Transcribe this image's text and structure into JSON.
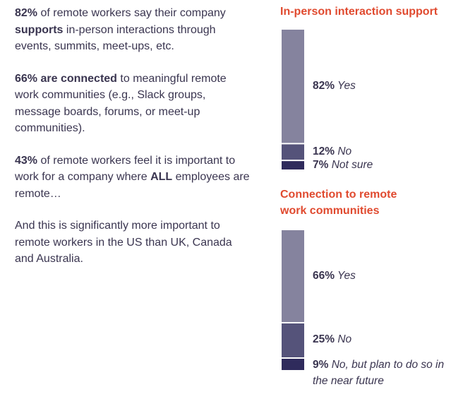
{
  "paragraphs": [
    {
      "segments": [
        {
          "text": "82%",
          "bold": true
        },
        {
          "text": " of remote workers say their company ",
          "bold": false
        },
        {
          "text": "supports",
          "bold": true
        },
        {
          "text": " in-person interactions through events, summits, meet-ups, etc.",
          "bold": false
        }
      ]
    },
    {
      "segments": [
        {
          "text": "66% are connected",
          "bold": true
        },
        {
          "text": " to meaningful remote work communities (e.g., Slack groups, message boards, forums, or meet-up communities).",
          "bold": false
        }
      ]
    },
    {
      "segments": [
        {
          "text": "43%",
          "bold": true
        },
        {
          "text": " of remote workers feel it is important to work for a company where ",
          "bold": false
        },
        {
          "text": "ALL",
          "bold": true
        },
        {
          "text": " employees are remote…",
          "bold": false
        }
      ]
    },
    {
      "segments": [
        {
          "text": "And this is significantly more important to remote workers in the US than UK, Canada and Australia.",
          "bold": false
        }
      ]
    }
  ],
  "chart_data": [
    {
      "type": "bar",
      "stacked": true,
      "title": "In-person interaction support",
      "categories": [
        "Yes",
        "No",
        "Not sure"
      ],
      "values": [
        82,
        12,
        7
      ],
      "value_labels": [
        "82%",
        "12%",
        "7%"
      ],
      "colors": [
        "#85839e",
        "#55537a",
        "#2f2b5c"
      ]
    },
    {
      "type": "bar",
      "stacked": true,
      "title": "Connection to remote work communities",
      "categories": [
        "Yes",
        "No",
        "No, but plan to do so in the near future"
      ],
      "values": [
        66,
        25,
        9
      ],
      "value_labels": [
        "66%",
        "25%",
        "9%"
      ],
      "colors": [
        "#85839e",
        "#55537a",
        "#2f2b5c"
      ]
    }
  ]
}
